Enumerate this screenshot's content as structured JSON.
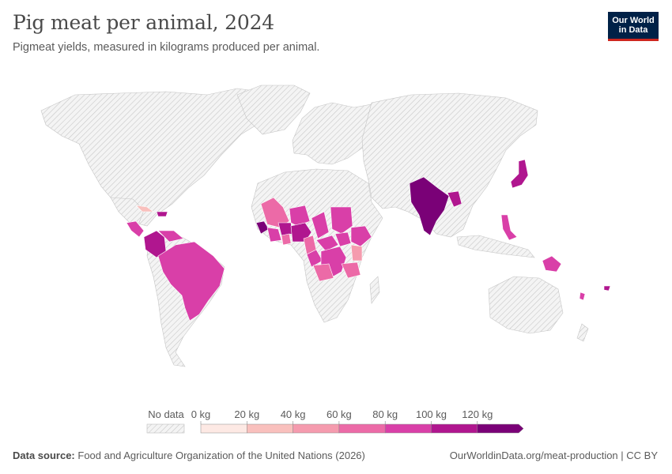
{
  "header": {
    "title": "Pig meat per animal, 2024",
    "subtitle": "Pigmeat yields, measured in kilograms produced per animal.",
    "logo_line1": "Our World",
    "logo_line2": "in Data"
  },
  "legend": {
    "no_data_label": "No data",
    "ticks": [
      "0 kg",
      "20 kg",
      "40 kg",
      "60 kg",
      "80 kg",
      "100 kg",
      "120 kg"
    ],
    "colors": [
      "#fde9e4",
      "#f9c0bd",
      "#f59bae",
      "#ec6aa7",
      "#d93fa8",
      "#b0168f",
      "#7a0177"
    ]
  },
  "colors": {
    "land_no_data": "#eeeeee",
    "border": "#c9c9c9"
  },
  "footer": {
    "source_label": "Data source:",
    "source_text": "Food and Agriculture Organization of the United Nations (2026)",
    "link_text": "OurWorldinData.org/meat-production | CC BY"
  }
}
